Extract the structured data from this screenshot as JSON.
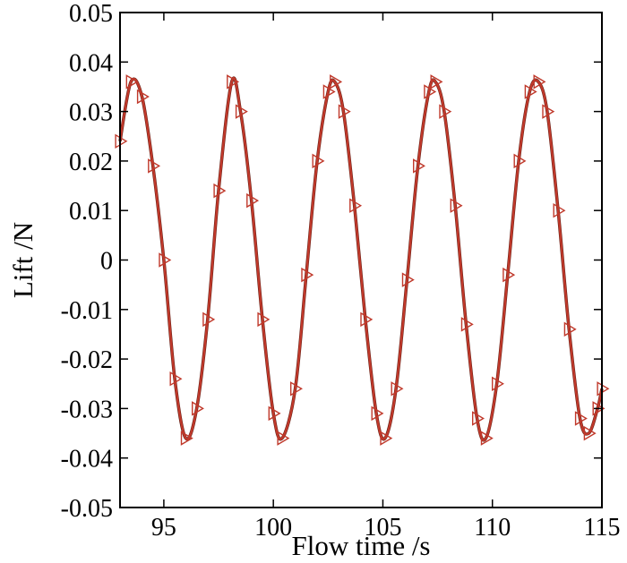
{
  "chart_data": {
    "type": "line",
    "xlabel": "Flow time /s",
    "ylabel": "Lift /N",
    "xlim": [
      93,
      115
    ],
    "ylim": [
      -0.05,
      0.05
    ],
    "x_ticks": [
      95,
      100,
      105,
      110,
      115
    ],
    "y_ticks": [
      0.05,
      0.04,
      0.03,
      0.02,
      0.01,
      0,
      -0.01,
      -0.02,
      -0.03,
      -0.04,
      -0.05
    ],
    "x_tick_labels": [
      "95",
      "100",
      "105",
      "110",
      "115"
    ],
    "y_tick_labels": [
      "0.05",
      "0.04",
      "0.03",
      "0.02",
      "0.01",
      "0",
      "-0.01",
      "-0.02",
      "-0.03",
      "-0.04",
      "-0.05"
    ],
    "grid": false,
    "series": [
      {
        "color": "#c0392b",
        "line_style": "solid",
        "marker": "triangle-right",
        "x": [
          93.0,
          93.5,
          94.0,
          94.5,
          95.0,
          95.5,
          96.0,
          96.5,
          97.0,
          97.5,
          98.1,
          98.5,
          99.0,
          99.5,
          100.0,
          100.4,
          101.0,
          101.5,
          102.0,
          102.5,
          102.8,
          103.2,
          103.7,
          104.2,
          104.7,
          105.1,
          105.6,
          106.1,
          106.6,
          107.1,
          107.4,
          107.8,
          108.3,
          108.8,
          109.3,
          109.7,
          110.2,
          110.7,
          111.2,
          111.7,
          112.1,
          112.5,
          113.0,
          113.5,
          114.0,
          114.4,
          114.8,
          115.0
        ],
        "y": [
          0.024,
          0.036,
          0.033,
          0.019,
          0.0,
          -0.024,
          -0.036,
          -0.03,
          -0.012,
          0.014,
          0.036,
          0.03,
          0.012,
          -0.012,
          -0.031,
          -0.036,
          -0.026,
          -0.003,
          0.02,
          0.034,
          0.036,
          0.03,
          0.011,
          -0.012,
          -0.031,
          -0.036,
          -0.026,
          -0.004,
          0.019,
          0.034,
          0.036,
          0.03,
          0.011,
          -0.013,
          -0.032,
          -0.036,
          -0.025,
          -0.003,
          0.02,
          0.034,
          0.036,
          0.03,
          0.01,
          -0.014,
          -0.032,
          -0.035,
          -0.03,
          -0.026
        ]
      }
    ]
  }
}
